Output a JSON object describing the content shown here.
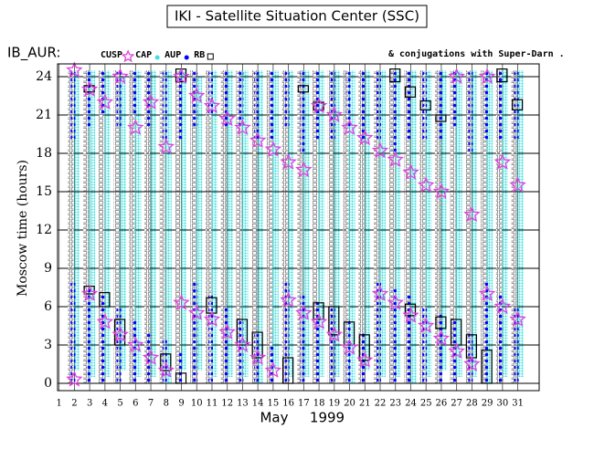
{
  "chart_data": {
    "type": "scatter",
    "title": "IKI - Satellite Situation Center (SSC)",
    "left_label": "IB_AUR:",
    "annotation": "& conjugations with Super-Darn .",
    "ylabel": "Moscow time (hours)",
    "xlabel": "May",
    "year_label": "1999",
    "xlim": [
      0.9,
      32.4
    ],
    "ylim": [
      -0.57,
      25
    ],
    "xticks": [
      1,
      2,
      3,
      4,
      5,
      6,
      7,
      8,
      9,
      10,
      11,
      12,
      13,
      14,
      15,
      16,
      17,
      18,
      19,
      20,
      21,
      22,
      23,
      24,
      25,
      26,
      27,
      28,
      29,
      30,
      31
    ],
    "yticks": [
      0,
      3,
      6,
      9,
      12,
      15,
      18,
      21,
      24
    ],
    "grid": true,
    "series": [
      {
        "name": "CUSP",
        "marker": "star",
        "color": "#e040e0",
        "x": [
          2,
          3,
          4,
          5,
          6,
          7,
          8,
          9,
          10,
          11,
          12,
          13,
          14,
          15,
          16,
          17,
          18,
          19,
          20,
          21,
          22,
          23,
          24,
          25,
          26,
          27,
          28,
          29,
          30,
          31,
          2,
          3,
          4,
          5,
          6,
          7,
          8,
          9,
          10,
          11,
          12,
          13,
          14,
          15,
          16,
          17,
          18,
          19,
          20,
          21,
          22,
          23,
          24,
          25,
          26,
          27,
          28,
          29,
          30,
          31
        ],
        "y": [
          0.3,
          7.0,
          4.8,
          3.8,
          3.0,
          2.0,
          1.0,
          6.3,
          5.5,
          5.0,
          4.0,
          3.0,
          2.0,
          1.0,
          6.5,
          5.5,
          4.8,
          3.8,
          2.8,
          1.8,
          7.0,
          6.3,
          5.3,
          4.5,
          3.5,
          2.5,
          1.5,
          7.0,
          6.0,
          5.0,
          24.5,
          23.0,
          22.0,
          24.0,
          20.0,
          22.0,
          18.5,
          24.0,
          22.5,
          21.7,
          20.7,
          20.0,
          19.0,
          18.3,
          17.3,
          16.7,
          21.7,
          21.0,
          20.0,
          19.2,
          18.2,
          17.5,
          16.5,
          15.5,
          15.0,
          24.0,
          13.2,
          24.0,
          17.3,
          15.5
        ]
      },
      {
        "name": "CAP",
        "marker": "band",
        "color": "#40e0e0",
        "x": [
          2,
          3,
          4,
          5,
          6,
          7,
          8,
          9,
          10,
          11,
          12,
          13,
          14,
          15,
          16,
          17,
          18,
          19,
          20,
          21,
          22,
          23,
          24,
          25,
          26,
          27,
          28,
          29,
          30,
          31
        ],
        "start": [
          1,
          0.5,
          0.5,
          1,
          0.5,
          0.5,
          0,
          1,
          1,
          0.5,
          0.5,
          0.5,
          0,
          1,
          0.5,
          0.5,
          0.5,
          0.5,
          0,
          1,
          0.5,
          0.5,
          0,
          0.5,
          1,
          0.5,
          0.5,
          0,
          0.5,
          0.5
        ],
        "end": [
          24.5,
          24.5,
          24.5,
          24,
          24.5,
          24.5,
          24.5,
          24.5,
          24,
          24.5,
          24.5,
          24.5,
          24.5,
          24.5,
          24.5,
          24.5,
          24.5,
          24.5,
          24.5,
          24.5,
          24.5,
          24.5,
          24.5,
          24.5,
          24.5,
          24.5,
          24.5,
          24.5,
          24.5,
          24.5
        ]
      },
      {
        "name": "AUP",
        "marker": "dot",
        "color": "#0000ff",
        "x": [
          2,
          3,
          4,
          5,
          6,
          7,
          8,
          9,
          10,
          11,
          12,
          13,
          14,
          15,
          16,
          17,
          18,
          19,
          20,
          21,
          22,
          23,
          24,
          25,
          26,
          27,
          28,
          29,
          30,
          31,
          2,
          3,
          4,
          5,
          6,
          7,
          8,
          9,
          10,
          11,
          12,
          13,
          14,
          15,
          16,
          17,
          18,
          19,
          20,
          21,
          22,
          23,
          24,
          25,
          26,
          27,
          28,
          29,
          30,
          31
        ],
        "start": [
          0,
          0,
          0,
          0,
          0,
          0,
          0,
          0,
          0,
          0,
          0,
          0,
          0,
          0,
          0,
          0,
          0,
          0,
          0,
          0,
          0,
          0,
          0,
          0,
          0,
          0,
          0,
          0,
          0,
          0,
          19,
          20,
          21,
          20,
          21,
          20,
          19,
          19,
          20,
          21,
          20,
          20,
          19,
          19,
          20,
          18,
          19,
          19,
          20,
          19,
          19,
          18,
          19,
          19,
          19,
          20,
          18,
          19,
          19,
          19
        ],
        "end": [
          8,
          7.5,
          7,
          6,
          5,
          4,
          3.5,
          2.5,
          8,
          7,
          6,
          5,
          4,
          3,
          8,
          7,
          6.5,
          6,
          5,
          4,
          8,
          7.5,
          7,
          6,
          5.5,
          5,
          4,
          8,
          7,
          6,
          24.5,
          24.5,
          24.5,
          24.5,
          24.5,
          24.5,
          24.5,
          24.5,
          24.5,
          24.5,
          24.5,
          24.5,
          24.5,
          24.5,
          24.5,
          24.5,
          24.5,
          24.5,
          24.5,
          24.5,
          24.5,
          24.5,
          24.5,
          24.5,
          24.5,
          24.5,
          24.5,
          24.5,
          24.5,
          24.5
        ]
      },
      {
        "name": "RB",
        "marker": "square",
        "color": "#808080",
        "x": [
          2,
          3,
          4,
          5,
          6,
          7,
          8,
          9,
          10,
          11,
          12,
          13,
          14,
          15,
          16,
          17,
          18,
          19,
          20,
          21,
          22,
          23,
          24,
          25,
          26,
          27,
          28,
          29,
          30,
          31
        ],
        "start": [
          0,
          0,
          0,
          0,
          0,
          0,
          0,
          0,
          0,
          0,
          0,
          0,
          0,
          0,
          0,
          0,
          0,
          0,
          0,
          0,
          0,
          0,
          0,
          0,
          0,
          0,
          0,
          0,
          0,
          0
        ],
        "end": [
          24.5,
          24.5,
          24.5,
          24.5,
          24.5,
          24.5,
          24.5,
          24.5,
          24.5,
          24.5,
          24.5,
          24.5,
          24.5,
          24.5,
          24.5,
          24.5,
          24.5,
          24.5,
          24.5,
          24.5,
          24.5,
          24.5,
          24.5,
          24.5,
          24.5,
          24.5,
          24.5,
          24.5,
          24.5,
          24.5
        ]
      }
    ],
    "conjugations": {
      "color": "#000000",
      "x": [
        3,
        4,
        5,
        8,
        9,
        11,
        13,
        14,
        16,
        18,
        19,
        20,
        21,
        24,
        26,
        27,
        28,
        29,
        3,
        9,
        17,
        18,
        23,
        24,
        25,
        26,
        30,
        31
      ],
      "start": [
        7,
        6,
        3,
        1,
        0,
        5.5,
        3,
        2,
        0,
        5,
        3.8,
        3,
        1.8,
        5.3,
        4.3,
        3,
        2,
        0,
        22.8,
        23.6,
        22.8,
        21.4,
        23.6,
        22.4,
        21.4,
        20.5,
        23.6,
        21.4
      ],
      "end": [
        7.6,
        7.1,
        5,
        2.3,
        0.8,
        6.7,
        5,
        4,
        2,
        6.3,
        6,
        4.8,
        3.8,
        6.2,
        5.2,
        5,
        3.8,
        2.6,
        23.3,
        24.6,
        23.3,
        22,
        24.6,
        23.2,
        22.1,
        21,
        24.6,
        22.2
      ]
    }
  }
}
